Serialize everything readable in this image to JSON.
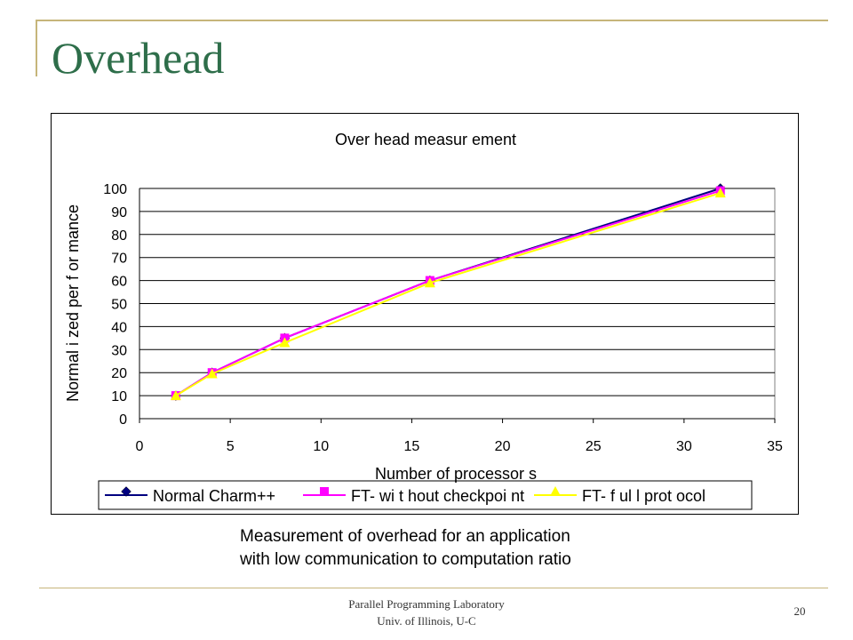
{
  "slide": {
    "title": "Overhead",
    "caption_line1": "Measurement of overhead for an application",
    "caption_line2": "with low communication to computation ratio",
    "footer_line1": "Parallel Programming Laboratory",
    "footer_line2": "Univ. of Illinois, U-C",
    "page_number": "20"
  },
  "chart_data": {
    "type": "line",
    "title": "Over head measur ement",
    "xlabel": "Number of processor s",
    "ylabel": "Normal i zed per f or mance",
    "xlim": [
      0,
      35
    ],
    "ylim": [
      0,
      100
    ],
    "x_ticks": [
      0,
      5,
      10,
      15,
      20,
      25,
      30,
      35
    ],
    "y_ticks": [
      0,
      10,
      20,
      30,
      40,
      50,
      60,
      70,
      80,
      90,
      100
    ],
    "grid": "horizontal",
    "legend_position": "bottom",
    "x": [
      2,
      4,
      8,
      16,
      32
    ],
    "series": [
      {
        "name": "Normal Charm++",
        "values": [
          10,
          20,
          35,
          60,
          100
        ],
        "color": "#000080",
        "marker": "diamond"
      },
      {
        "name": "FT- wi t hout checkpoi nt",
        "values": [
          10,
          20,
          35,
          60,
          99
        ],
        "color": "#ff00ff",
        "marker": "square"
      },
      {
        "name": "FT- f ul l prot ocol",
        "values": [
          10,
          19.5,
          33,
          59,
          98
        ],
        "color": "#ffff00",
        "marker": "triangle"
      }
    ]
  }
}
